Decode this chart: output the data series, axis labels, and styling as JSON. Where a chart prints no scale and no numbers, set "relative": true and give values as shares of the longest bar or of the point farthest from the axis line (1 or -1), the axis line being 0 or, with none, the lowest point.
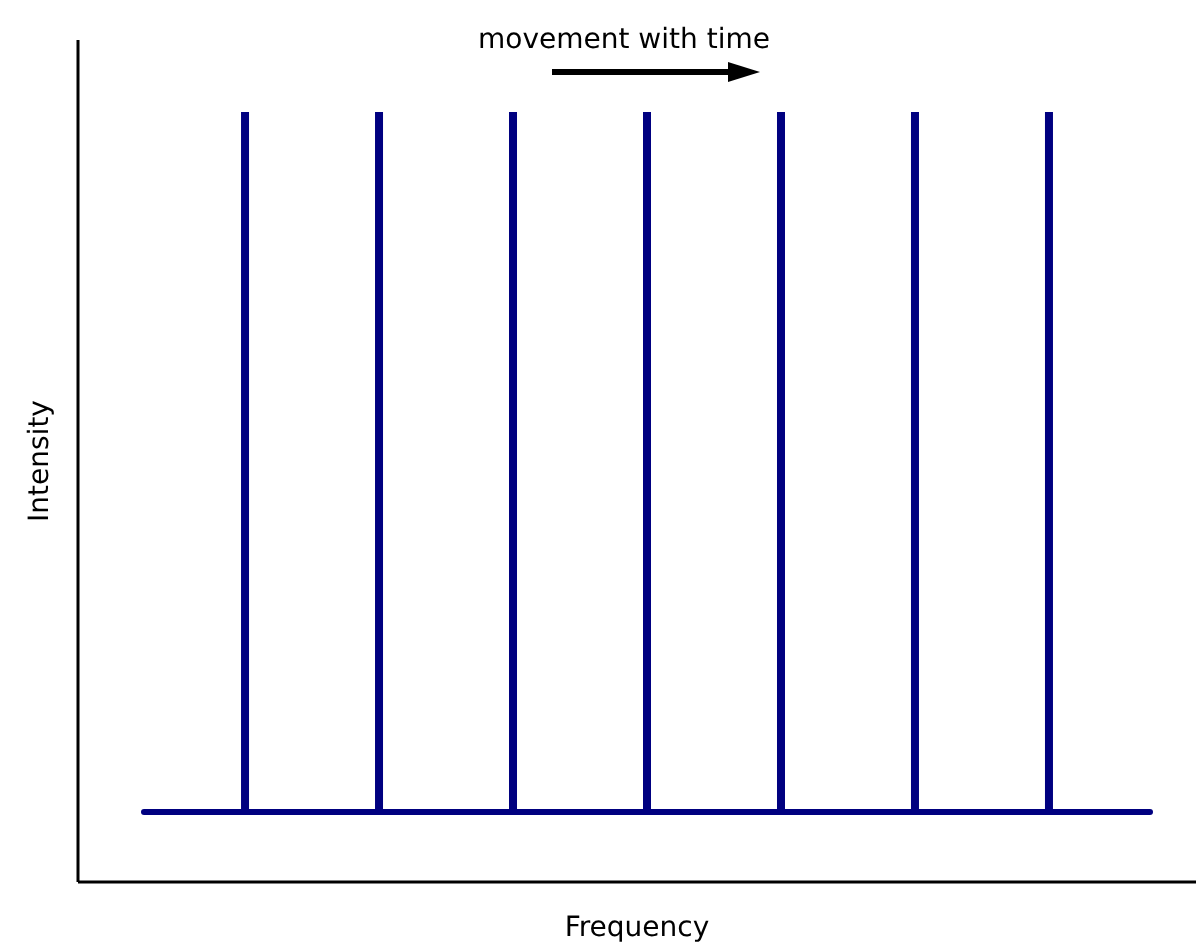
{
  "chart_data": {
    "type": "bar",
    "relative": true,
    "xlabel": "Frequency",
    "ylabel": "Intensity",
    "annotations": [
      "movement with time"
    ],
    "categories": [
      null,
      null,
      null,
      null,
      null,
      null,
      null
    ],
    "values": [
      1,
      1,
      1,
      1,
      1,
      1,
      1
    ],
    "color": "#000080"
  }
}
